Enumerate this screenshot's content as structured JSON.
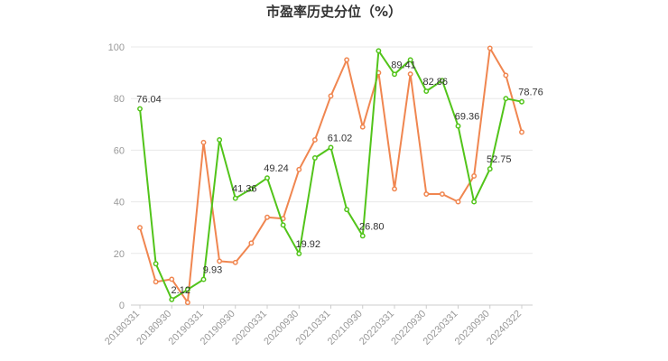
{
  "chart_data": {
    "type": "line",
    "title": "市盈率历史分位（%）",
    "ylim": [
      0,
      100
    ],
    "yticks": [
      0,
      20,
      40,
      60,
      80,
      100
    ],
    "grid": true,
    "x_tick_labels": [
      "20180331",
      "20180930",
      "20190331",
      "20190930",
      "20200331",
      "20200930",
      "20210331",
      "20210930",
      "20220331",
      "20220930",
      "20230331",
      "20230930",
      "20240322"
    ],
    "x": [
      "20180331",
      "20180630",
      "20180930",
      "20181231",
      "20190331",
      "20190630",
      "20190930",
      "20191231",
      "20200331",
      "20200630",
      "20200930",
      "20201231",
      "20210331",
      "20210630",
      "20210930",
      "20211231",
      "20220331",
      "20220630",
      "20220930",
      "20221231",
      "20230331",
      "20230630",
      "20230930",
      "20231231",
      "20240322"
    ],
    "series": [
      {
        "color": "#52c41a",
        "values": [
          76.04,
          16,
          2.12,
          6,
          9.93,
          64,
          41.36,
          45,
          49.24,
          31,
          19.92,
          57,
          61.02,
          37,
          26.8,
          98.5,
          89.41,
          95,
          82.86,
          87,
          69.36,
          40,
          52.75,
          80,
          78.76
        ],
        "labels": {
          "0": "76.04",
          "2": "2.12",
          "4": "9.93",
          "6": "41.36",
          "8": "49.24",
          "10": "19.92",
          "12": "61.02",
          "14": "26.80",
          "16": "89.41",
          "18": "82.86",
          "20": "69.36",
          "22": "52.75",
          "24": "78.76"
        }
      },
      {
        "color": "#f08650",
        "values": [
          30,
          9,
          10,
          1,
          63,
          17,
          16.5,
          24,
          34,
          33.5,
          52.5,
          64,
          81,
          95,
          69,
          90,
          45,
          89.5,
          43,
          43,
          40,
          50,
          99.5,
          89,
          67
        ],
        "labels": {}
      }
    ]
  }
}
